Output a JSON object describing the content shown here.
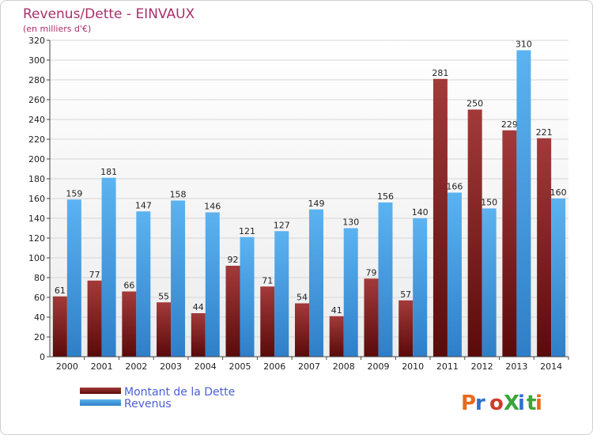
{
  "chart_data": {
    "type": "bar",
    "title": "Revenus/Dette - EINVAUX",
    "subtitle": "(en milliers d'€)",
    "categories": [
      "2000",
      "2001",
      "2002",
      "2003",
      "2004",
      "2005",
      "2006",
      "2007",
      "2008",
      "2009",
      "2010",
      "2011",
      "2012",
      "2013",
      "2014"
    ],
    "series": [
      {
        "name": "Montant de la Dette",
        "color": "#7a1a1a",
        "values": [
          61,
          77,
          66,
          55,
          44,
          92,
          71,
          54,
          41,
          79,
          57,
          281,
          250,
          229,
          221
        ]
      },
      {
        "name": "Revenus",
        "color": "#3d9be0",
        "values": [
          159,
          181,
          147,
          158,
          146,
          121,
          127,
          149,
          130,
          156,
          140,
          166,
          150,
          310,
          160
        ]
      }
    ],
    "ylim": [
      0,
      320
    ],
    "yticks": [
      0,
      20,
      40,
      60,
      80,
      100,
      120,
      140,
      160,
      180,
      200,
      220,
      240,
      260,
      280,
      300,
      320
    ],
    "grid": true,
    "legend": "bottom-left"
  },
  "branding": {
    "logo_text": "ProXiti",
    "logo_colors": [
      "#e86a1a",
      "#2f6fd0",
      "#d23a2a",
      "#3aa53a"
    ]
  }
}
